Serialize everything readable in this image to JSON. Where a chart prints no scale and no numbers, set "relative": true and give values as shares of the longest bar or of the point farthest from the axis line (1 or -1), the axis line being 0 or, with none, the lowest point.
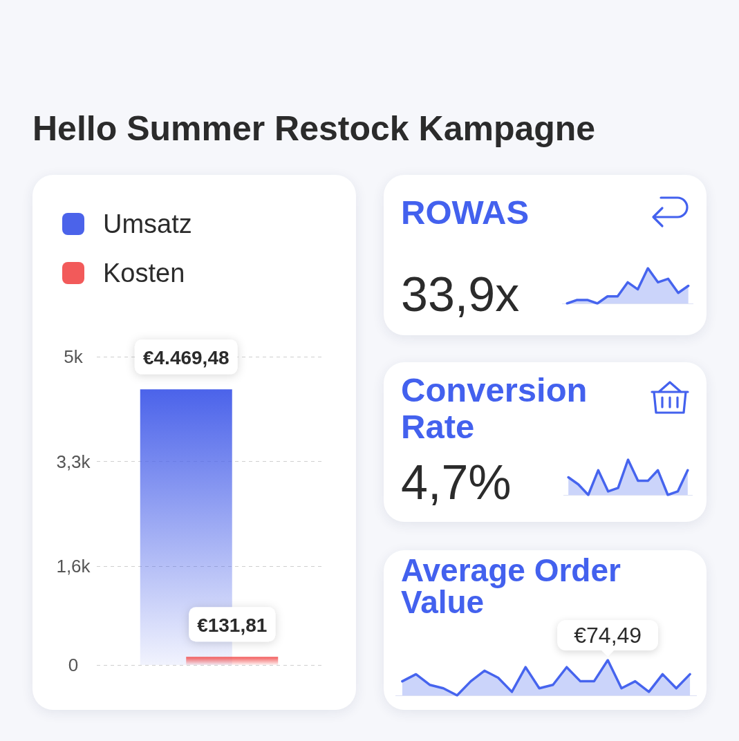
{
  "chart_data": [
    {
      "type": "other",
      "title": "Hello Summer Restock Kampagne"
    },
    {
      "type": "bar",
      "categories": [
        null
      ],
      "series": [
        {
          "name": "Umsatz",
          "color": "#4b63ea",
          "values": [
            4469.48
          ],
          "value_labels": [
            "€4.469,48"
          ]
        },
        {
          "name": "Kosten",
          "color": "#f25a5a",
          "values": [
            131.81
          ],
          "value_labels": [
            "€131,81"
          ]
        }
      ],
      "ylim": [
        0,
        5000
      ],
      "yticks": [
        0,
        {
          "value": 1600,
          "label": "1,6k"
        },
        {
          "value": 3300,
          "label": "3,3k"
        },
        {
          "value": 5000,
          "label": "5k"
        }
      ],
      "grid": "y",
      "legend": "top left",
      "tick_labels": "y"
    },
    {
      "type": "area",
      "title": "ROWAS",
      "annotations": [
        "33,9x"
      ],
      "relative": true,
      "marker": "none",
      "categories": [
        null,
        null,
        null,
        null,
        null,
        null,
        null,
        null,
        null,
        null,
        null,
        null,
        null
      ],
      "series": [
        {
          "color": "#4664ee",
          "values": [
            0,
            0.1,
            0.1,
            0,
            0.2,
            0.2,
            0.6,
            0.4,
            1,
            0.6,
            0.7,
            0.3,
            0.5
          ]
        }
      ]
    },
    {
      "type": "area",
      "title": "Conversion Rate",
      "annotations": [
        "4,7%"
      ],
      "relative": true,
      "marker": "none",
      "categories": [
        null,
        null,
        null,
        null,
        null,
        null,
        null,
        null,
        null,
        null,
        null,
        null,
        null
      ],
      "series": [
        {
          "color": "#4664ee",
          "values": [
            0.5,
            0.3,
            0,
            0.7,
            0.1,
            0.2,
            1,
            0.4,
            0.4,
            0.7,
            0,
            0.1,
            0.7
          ]
        }
      ]
    },
    {
      "type": "area",
      "title": "Average Order Value",
      "annotations": [
        "€74,49"
      ],
      "relative": true,
      "marker": "none",
      "categories": [
        null,
        null,
        null,
        null,
        null,
        null,
        null,
        null,
        null,
        null,
        null,
        null,
        null,
        null,
        null,
        null,
        null,
        null,
        null,
        null,
        null,
        null
      ],
      "series": [
        {
          "color": "#4664ee",
          "values": [
            0.4,
            0.6,
            0.3,
            0.2,
            0,
            0.4,
            0.7,
            0.5,
            0.1,
            0.8,
            0.2,
            0.3,
            0.8,
            0.4,
            0.4,
            1,
            0.2,
            0.4,
            0.1,
            0.6,
            0.2,
            0.6
          ]
        }
      ]
    }
  ]
}
